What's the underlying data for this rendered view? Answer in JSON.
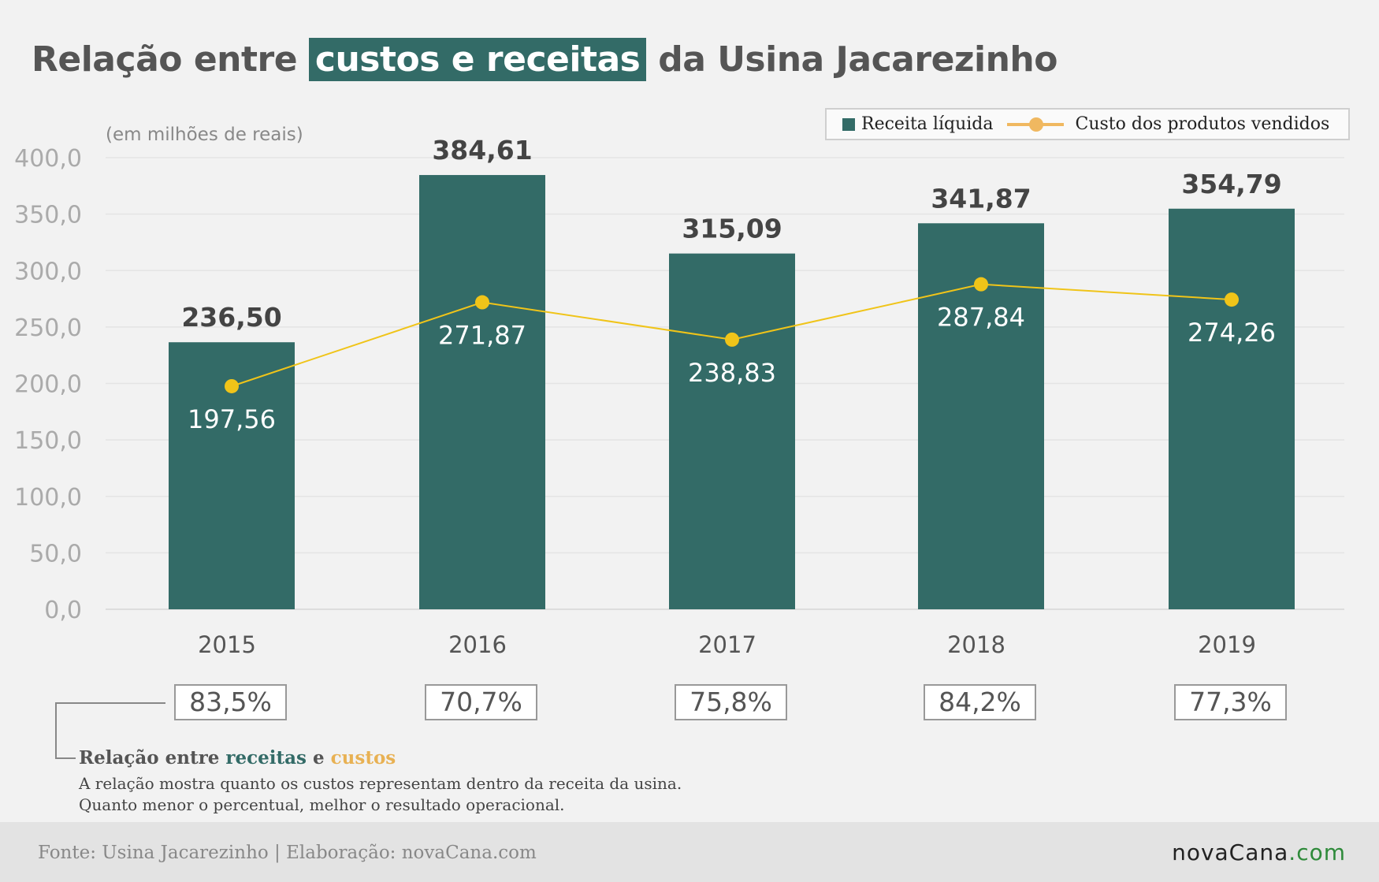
{
  "title": {
    "before": "Relação entre ",
    "highlight": "custos e receitas",
    "after": " da Usina Jacarezinho"
  },
  "unit_label": "(em milhões de reais)",
  "legend": {
    "bar_label": "Receita líquida",
    "line_label": "Custo dos produtos vendidos"
  },
  "colors": {
    "bar": "#336b67",
    "line": "#f0c419",
    "legend_line": "#f0b860",
    "accent_green": "#336b67",
    "accent_orange": "#e8b153"
  },
  "chart_data": {
    "type": "bar",
    "categories": [
      "2015",
      "2016",
      "2017",
      "2018",
      "2019"
    ],
    "series": [
      {
        "name": "Receita líquida",
        "type": "bar",
        "values": [
          236.5,
          384.61,
          315.09,
          341.87,
          354.79
        ],
        "labels": [
          "236,50",
          "384,61",
          "315,09",
          "341,87",
          "354,79"
        ]
      },
      {
        "name": "Custo dos produtos vendidos",
        "type": "line",
        "values": [
          197.56,
          271.87,
          238.83,
          287.84,
          274.26
        ],
        "labels": [
          "197,56",
          "271,87",
          "238,83",
          "287,84",
          "274,26"
        ]
      }
    ],
    "ylim": [
      0,
      400
    ],
    "yticks": [
      "0,0",
      "50,0",
      "100,0",
      "150,0",
      "200,0",
      "250,0",
      "300,0",
      "350,0",
      "400,0"
    ],
    "grid": true,
    "legend_position": "top-right"
  },
  "ratios": [
    "83,5%",
    "70,7%",
    "75,8%",
    "84,2%",
    "77,3%"
  ],
  "note": {
    "head_prefix": "Relação entre ",
    "head_green": "receitas",
    "head_mid": " e ",
    "head_orange": "custos",
    "line1": "A relação mostra quanto os custos representam dentro da receita da usina.",
    "line2": "Quanto menor o percentual, melhor o resultado operacional."
  },
  "footer": {
    "source": "Fonte: Usina Jacarezinho | Elaboração: novaCana.com",
    "brand_name": "novaCana",
    "brand_suffix": ".com"
  }
}
